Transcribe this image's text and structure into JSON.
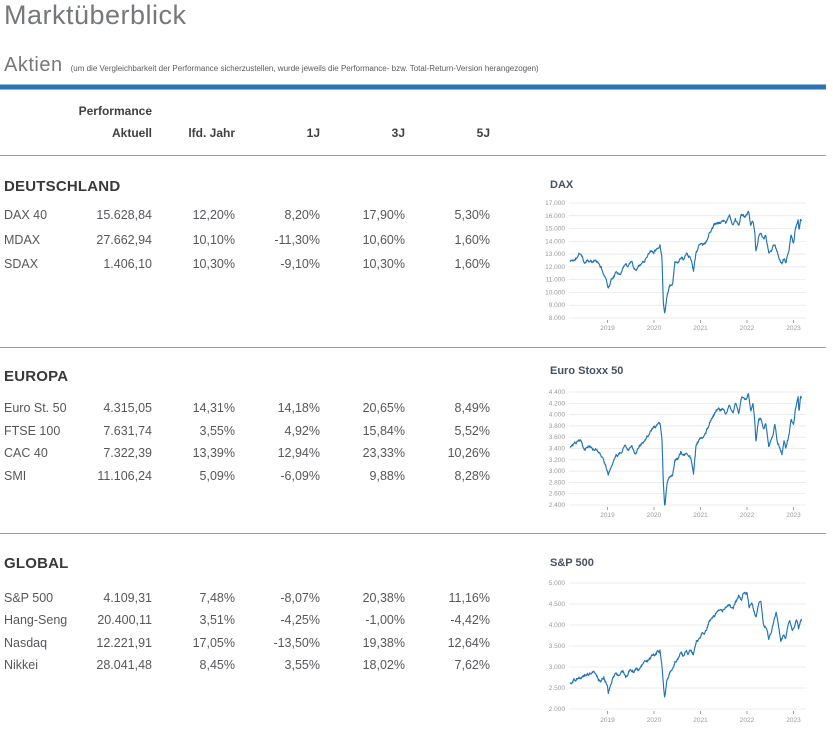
{
  "page": {
    "title": "Marktüberblick",
    "section_title": "Aktien",
    "section_note": "(um die Vergleichbarkeit der Performance sicherzustellen, wurde jeweils die Performance- bzw. Total-Return-Version herangezogen)"
  },
  "colors": {
    "accent_rule": "#2e74b5",
    "chart_line": "#2173b8",
    "chart_grid": "#e6e6e6",
    "axis_text": "#9a9a9a",
    "separator": "#9c9d9f"
  },
  "table": {
    "group_header": "Performance",
    "columns": [
      "Aktuell",
      "lfd. Jahr",
      "1J",
      "3J",
      "5J"
    ],
    "sections": [
      {
        "name": "DEUTSCHLAND",
        "rows": [
          {
            "label": "DAX 40",
            "values": [
              "15.628,84",
              "12,20%",
              "8,20%",
              "17,90%",
              "5,30%"
            ]
          },
          {
            "label": "MDAX",
            "values": [
              "27.662,94",
              "10,10%",
              "-11,30%",
              "10,60%",
              "1,60%"
            ]
          },
          {
            "label": "SDAX",
            "values": [
              "1.406,10",
              "10,30%",
              "-9,10%",
              "10,30%",
              "1,60%"
            ]
          }
        ]
      },
      {
        "name": "EUROPA",
        "rows": [
          {
            "label": "Euro St. 50",
            "values": [
              "4.315,05",
              "14,31%",
              "14,18%",
              "20,65%",
              "8,49%"
            ]
          },
          {
            "label": "FTSE 100",
            "values": [
              "7.631,74",
              "3,55%",
              "4,92%",
              "15,84%",
              "5,52%"
            ]
          },
          {
            "label": "CAC 40",
            "values": [
              "7.322,39",
              "13,39%",
              "12,94%",
              "23,33%",
              "10,26%"
            ]
          },
          {
            "label": "SMI",
            "values": [
              "11.106,24",
              "5,09%",
              "-6,09%",
              "9,88%",
              "8,28%"
            ]
          }
        ]
      },
      {
        "name": "GLOBAL",
        "rows": [
          {
            "label": "S&P 500",
            "values": [
              "4.109,31",
              "7,48%",
              "-8,07%",
              "20,38%",
              "11,16%"
            ]
          },
          {
            "label": "Hang-Seng",
            "values": [
              "20.400,11",
              "3,51%",
              "-4,25%",
              "-1,00%",
              "-4,42%"
            ]
          },
          {
            "label": "Nasdaq",
            "values": [
              "12.221,91",
              "17,05%",
              "-13,50%",
              "19,38%",
              "12,64%"
            ]
          },
          {
            "label": "Nikkei",
            "values": [
              "28.041,48",
              "8,45%",
              "3,55%",
              "18,02%",
              "7,62%"
            ]
          }
        ]
      }
    ]
  },
  "chart_data": [
    {
      "type": "line",
      "title": "DAX",
      "seed": 11,
      "ylim": [
        8000,
        17000
      ],
      "ytick_step": 1000,
      "x_ticks": [
        2019,
        2020,
        2021,
        2022,
        2023
      ],
      "legend": "none",
      "grid": "horizontal",
      "series_keypoints": [
        [
          2018.2,
          12450
        ],
        [
          2018.3,
          12550
        ],
        [
          2018.42,
          13050
        ],
        [
          2018.5,
          12380
        ],
        [
          2018.58,
          12600
        ],
        [
          2018.68,
          12350
        ],
        [
          2018.75,
          12450
        ],
        [
          2018.83,
          12150
        ],
        [
          2018.92,
          11450
        ],
        [
          2019.0,
          10700
        ],
        [
          2019.02,
          10420
        ],
        [
          2019.1,
          11150
        ],
        [
          2019.2,
          11550
        ],
        [
          2019.3,
          11600
        ],
        [
          2019.37,
          12300
        ],
        [
          2019.45,
          12050
        ],
        [
          2019.52,
          12400
        ],
        [
          2019.6,
          11750
        ],
        [
          2019.7,
          12250
        ],
        [
          2019.78,
          12450
        ],
        [
          2019.88,
          13150
        ],
        [
          2019.95,
          13250
        ],
        [
          2020.0,
          13250
        ],
        [
          2020.07,
          13550
        ],
        [
          2020.13,
          13750
        ],
        [
          2020.17,
          12900
        ],
        [
          2020.2,
          9500
        ],
        [
          2020.23,
          8450
        ],
        [
          2020.28,
          9800
        ],
        [
          2020.33,
          10500
        ],
        [
          2020.4,
          10700
        ],
        [
          2020.45,
          12350
        ],
        [
          2020.52,
          12300
        ],
        [
          2020.58,
          12900
        ],
        [
          2020.63,
          12650
        ],
        [
          2020.7,
          13150
        ],
        [
          2020.75,
          12850
        ],
        [
          2020.8,
          12700
        ],
        [
          2020.85,
          11650
        ],
        [
          2020.9,
          13100
        ],
        [
          2020.97,
          13700
        ],
        [
          2021.02,
          13900
        ],
        [
          2021.07,
          13850
        ],
        [
          2021.13,
          14050
        ],
        [
          2021.2,
          14650
        ],
        [
          2021.28,
          15250
        ],
        [
          2021.35,
          15350
        ],
        [
          2021.42,
          15450
        ],
        [
          2021.5,
          15650
        ],
        [
          2021.55,
          15350
        ],
        [
          2021.62,
          15950
        ],
        [
          2021.7,
          15250
        ],
        [
          2021.75,
          15850
        ],
        [
          2021.82,
          15150
        ],
        [
          2021.88,
          16250
        ],
        [
          2021.95,
          15850
        ],
        [
          2022.0,
          16000
        ],
        [
          2022.03,
          16270
        ],
        [
          2022.08,
          15200
        ],
        [
          2022.13,
          15500
        ],
        [
          2022.17,
          14450
        ],
        [
          2022.19,
          13100
        ],
        [
          2022.25,
          14400
        ],
        [
          2022.3,
          14550
        ],
        [
          2022.35,
          14150
        ],
        [
          2022.4,
          14450
        ],
        [
          2022.47,
          13050
        ],
        [
          2022.53,
          13350
        ],
        [
          2022.6,
          13750
        ],
        [
          2022.65,
          13150
        ],
        [
          2022.72,
          12450
        ],
        [
          2022.75,
          12250
        ],
        [
          2022.8,
          12750
        ],
        [
          2022.83,
          12350
        ],
        [
          2022.9,
          13250
        ],
        [
          2022.95,
          14450
        ],
        [
          2023.0,
          14050
        ],
        [
          2023.04,
          15050
        ],
        [
          2023.08,
          15350
        ],
        [
          2023.1,
          15600
        ],
        [
          2023.12,
          14850
        ],
        [
          2023.15,
          15800
        ],
        [
          2023.17,
          15630
        ]
      ]
    },
    {
      "type": "line",
      "title": "Euro Stoxx 50",
      "seed": 23,
      "ylim": [
        2400,
        4400
      ],
      "ytick_step": 200,
      "x_ticks": [
        2019,
        2020,
        2021,
        2022,
        2023
      ],
      "legend": "none",
      "grid": "horizontal",
      "series_keypoints": [
        [
          2018.2,
          3440
        ],
        [
          2018.3,
          3480
        ],
        [
          2018.42,
          3530
        ],
        [
          2018.5,
          3380
        ],
        [
          2018.58,
          3440
        ],
        [
          2018.68,
          3390
        ],
        [
          2018.75,
          3420
        ],
        [
          2018.83,
          3320
        ],
        [
          2018.92,
          3180
        ],
        [
          2019.0,
          3000
        ],
        [
          2019.02,
          2930
        ],
        [
          2019.1,
          3120
        ],
        [
          2019.2,
          3260
        ],
        [
          2019.3,
          3320
        ],
        [
          2019.37,
          3480
        ],
        [
          2019.45,
          3380
        ],
        [
          2019.52,
          3460
        ],
        [
          2019.6,
          3330
        ],
        [
          2019.7,
          3450
        ],
        [
          2019.78,
          3520
        ],
        [
          2019.88,
          3650
        ],
        [
          2019.95,
          3720
        ],
        [
          2020.0,
          3750
        ],
        [
          2020.07,
          3790
        ],
        [
          2020.13,
          3840
        ],
        [
          2020.17,
          3580
        ],
        [
          2020.2,
          2850
        ],
        [
          2020.23,
          2400
        ],
        [
          2020.28,
          2750
        ],
        [
          2020.33,
          2880
        ],
        [
          2020.4,
          2920
        ],
        [
          2020.45,
          3200
        ],
        [
          2020.52,
          3240
        ],
        [
          2020.58,
          3350
        ],
        [
          2020.63,
          3280
        ],
        [
          2020.7,
          3330
        ],
        [
          2020.75,
          3270
        ],
        [
          2020.8,
          3200
        ],
        [
          2020.85,
          2960
        ],
        [
          2020.9,
          3450
        ],
        [
          2020.97,
          3560
        ],
        [
          2021.02,
          3600
        ],
        [
          2021.07,
          3640
        ],
        [
          2021.13,
          3720
        ],
        [
          2021.2,
          3850
        ],
        [
          2021.28,
          4000
        ],
        [
          2021.35,
          4060
        ],
        [
          2021.42,
          4070
        ],
        [
          2021.5,
          4120
        ],
        [
          2021.55,
          4000
        ],
        [
          2021.62,
          4180
        ],
        [
          2021.7,
          4050
        ],
        [
          2021.75,
          4180
        ],
        [
          2021.82,
          4000
        ],
        [
          2021.88,
          4300
        ],
        [
          2021.95,
          4250
        ],
        [
          2022.0,
          4300
        ],
        [
          2022.03,
          4390
        ],
        [
          2022.08,
          4080
        ],
        [
          2022.13,
          4200
        ],
        [
          2022.17,
          3900
        ],
        [
          2022.19,
          3550
        ],
        [
          2022.25,
          3900
        ],
        [
          2022.3,
          3950
        ],
        [
          2022.35,
          3750
        ],
        [
          2022.4,
          3850
        ],
        [
          2022.47,
          3450
        ],
        [
          2022.53,
          3550
        ],
        [
          2022.6,
          3800
        ],
        [
          2022.65,
          3500
        ],
        [
          2022.72,
          3350
        ],
        [
          2022.75,
          3280
        ],
        [
          2022.8,
          3520
        ],
        [
          2022.83,
          3400
        ],
        [
          2022.9,
          3650
        ],
        [
          2022.95,
          3920
        ],
        [
          2023.0,
          3850
        ],
        [
          2023.04,
          4100
        ],
        [
          2023.08,
          4250
        ],
        [
          2023.1,
          4300
        ],
        [
          2023.12,
          4050
        ],
        [
          2023.15,
          4330
        ],
        [
          2023.17,
          4315
        ]
      ]
    },
    {
      "type": "line",
      "title": "S&P 500",
      "seed": 37,
      "ylim": [
        2000,
        5000
      ],
      "ytick_step": 500,
      "x_ticks": [
        2019,
        2020,
        2021,
        2022,
        2023
      ],
      "legend": "none",
      "grid": "horizontal",
      "series_keypoints": [
        [
          2018.2,
          2630
        ],
        [
          2018.3,
          2700
        ],
        [
          2018.42,
          2750
        ],
        [
          2018.5,
          2800
        ],
        [
          2018.58,
          2850
        ],
        [
          2018.68,
          2900
        ],
        [
          2018.73,
          2930
        ],
        [
          2018.8,
          2780
        ],
        [
          2018.85,
          2650
        ],
        [
          2018.92,
          2750
        ],
        [
          2019.0,
          2500
        ],
        [
          2019.02,
          2350
        ],
        [
          2019.1,
          2700
        ],
        [
          2019.18,
          2780
        ],
        [
          2019.25,
          2850
        ],
        [
          2019.33,
          2920
        ],
        [
          2019.4,
          2750
        ],
        [
          2019.47,
          2950
        ],
        [
          2019.55,
          2890
        ],
        [
          2019.62,
          2980
        ],
        [
          2019.7,
          2920
        ],
        [
          2019.78,
          3050
        ],
        [
          2019.88,
          3150
        ],
        [
          2019.95,
          3230
        ],
        [
          2020.0,
          3250
        ],
        [
          2020.07,
          3340
        ],
        [
          2020.13,
          3390
        ],
        [
          2020.17,
          3000
        ],
        [
          2020.2,
          2600
        ],
        [
          2020.23,
          2220
        ],
        [
          2020.28,
          2650
        ],
        [
          2020.33,
          2850
        ],
        [
          2020.4,
          2950
        ],
        [
          2020.45,
          3100
        ],
        [
          2020.52,
          3150
        ],
        [
          2020.58,
          3350
        ],
        [
          2020.63,
          3250
        ],
        [
          2020.7,
          3450
        ],
        [
          2020.73,
          3300
        ],
        [
          2020.8,
          3400
        ],
        [
          2020.85,
          3270
        ],
        [
          2020.9,
          3550
        ],
        [
          2020.97,
          3720
        ],
        [
          2021.02,
          3800
        ],
        [
          2021.07,
          3850
        ],
        [
          2021.13,
          3900
        ],
        [
          2021.2,
          4100
        ],
        [
          2021.28,
          4200
        ],
        [
          2021.35,
          4300
        ],
        [
          2021.42,
          4400
        ],
        [
          2021.5,
          4350
        ],
        [
          2021.55,
          4450
        ],
        [
          2021.62,
          4550
        ],
        [
          2021.7,
          4350
        ],
        [
          2021.75,
          4550
        ],
        [
          2021.82,
          4700
        ],
        [
          2021.88,
          4600
        ],
        [
          2021.95,
          4790
        ],
        [
          2022.0,
          4750
        ],
        [
          2022.05,
          4400
        ],
        [
          2022.1,
          4600
        ],
        [
          2022.15,
          4300
        ],
        [
          2022.19,
          4200
        ],
        [
          2022.25,
          4500
        ],
        [
          2022.3,
          4580
        ],
        [
          2022.35,
          4100
        ],
        [
          2022.42,
          3900
        ],
        [
          2022.47,
          3650
        ],
        [
          2022.53,
          3850
        ],
        [
          2022.58,
          4150
        ],
        [
          2022.63,
          4280
        ],
        [
          2022.68,
          3950
        ],
        [
          2022.73,
          3600
        ],
        [
          2022.78,
          3750
        ],
        [
          2022.83,
          3700
        ],
        [
          2022.88,
          3950
        ],
        [
          2022.92,
          4080
        ],
        [
          2022.97,
          3840
        ],
        [
          2023.02,
          3950
        ],
        [
          2023.06,
          4150
        ],
        [
          2023.09,
          4050
        ],
        [
          2023.11,
          3900
        ],
        [
          2023.14,
          4050
        ],
        [
          2023.17,
          4109
        ]
      ]
    }
  ]
}
